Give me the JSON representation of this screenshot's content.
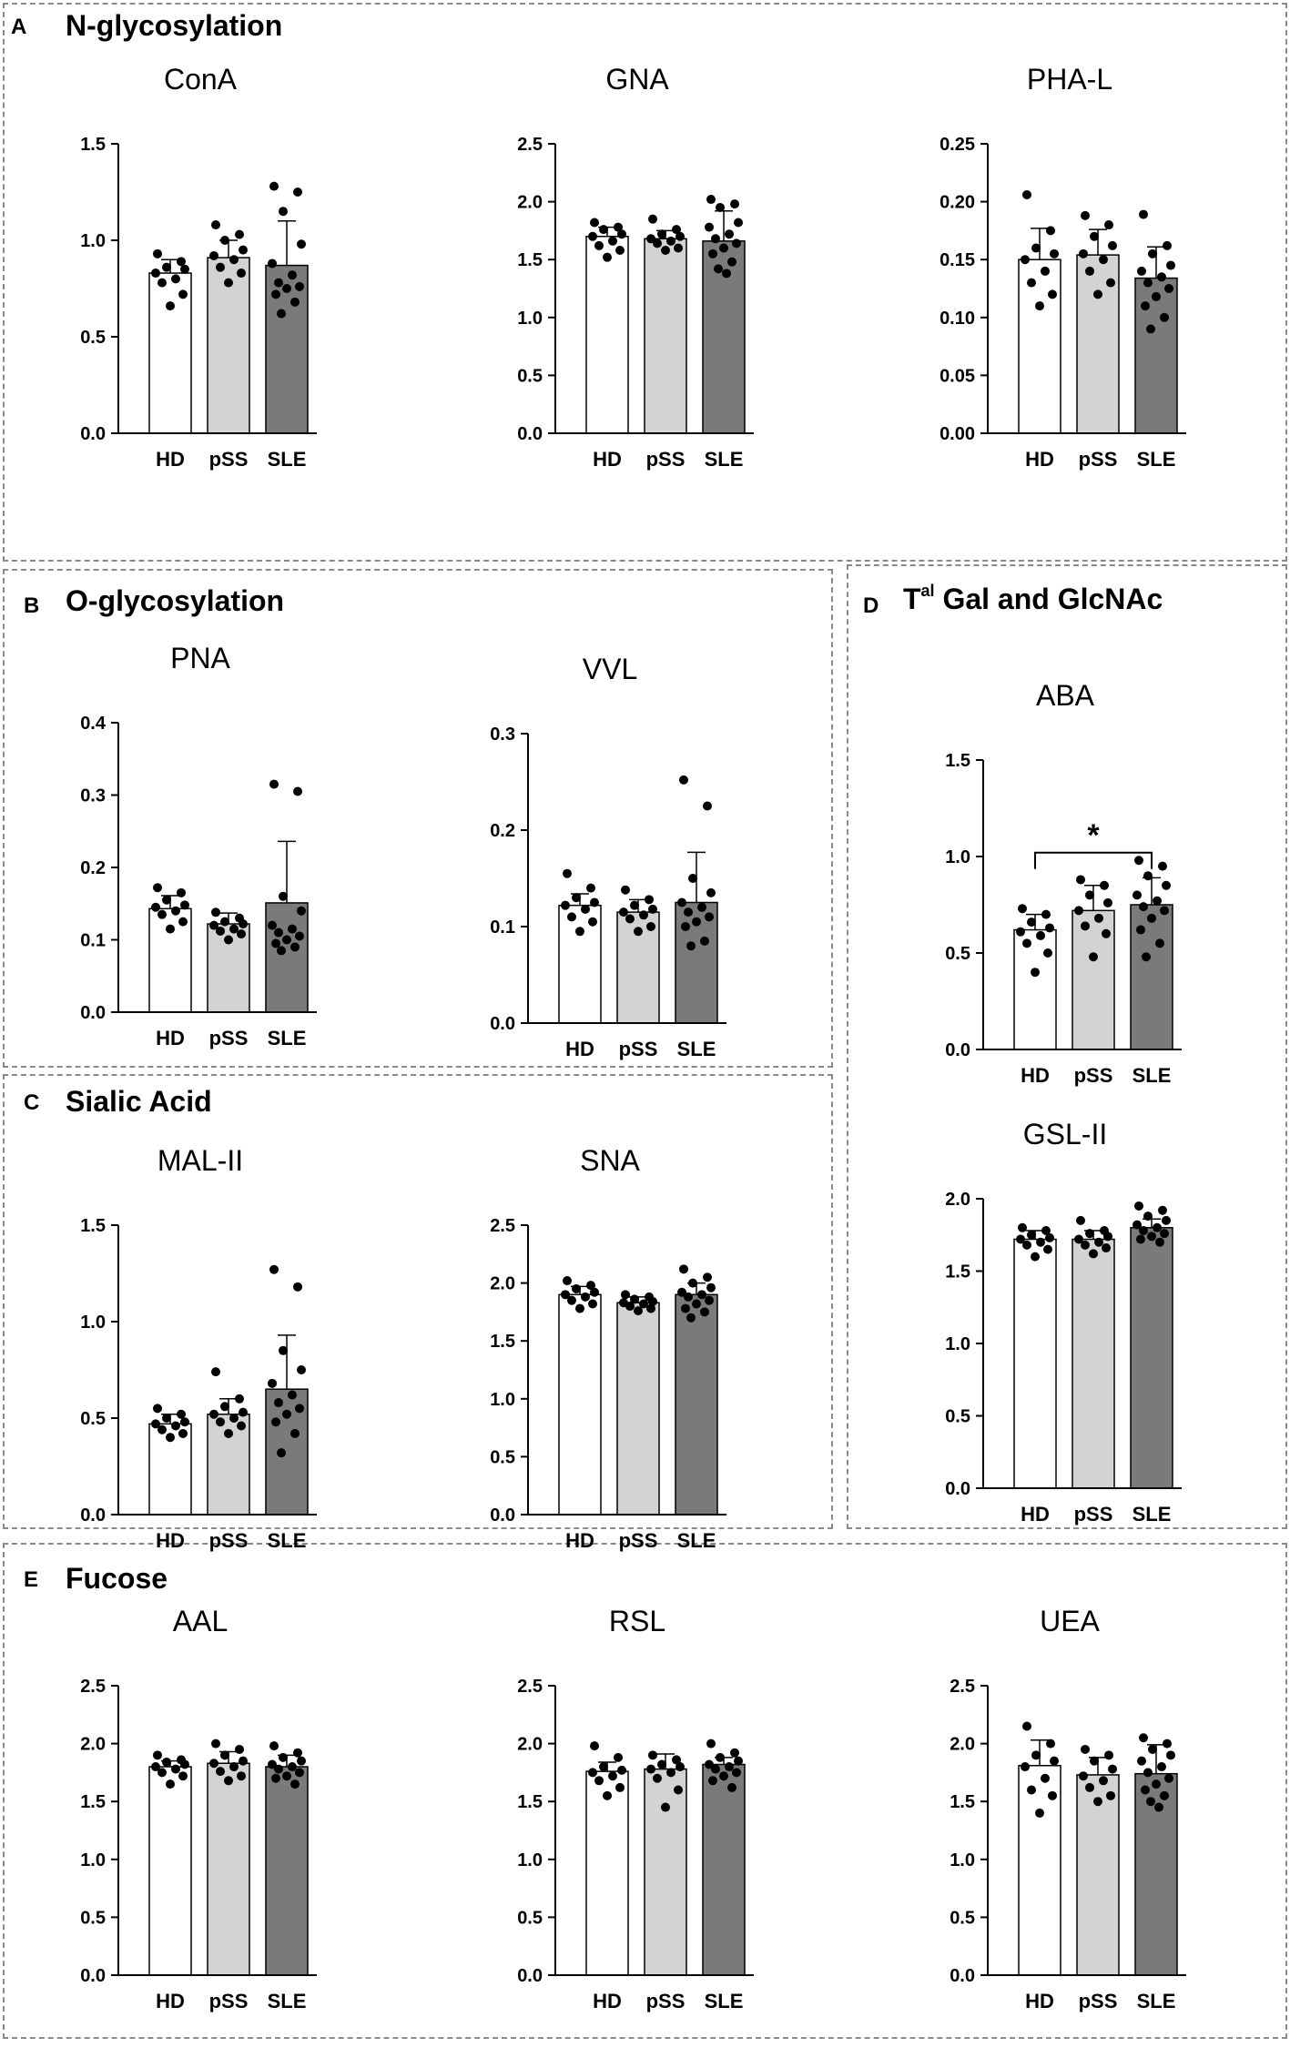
{
  "chart_data": [
    {
      "id": "cona",
      "panel": "A",
      "type": "bar",
      "title": "ConA",
      "categories": [
        "HD",
        "pSS",
        "SLE"
      ],
      "yticks": [
        "0.0",
        "0.5",
        "1.0",
        "1.5"
      ],
      "ylim": [
        0,
        1.5
      ],
      "colors": [
        "#ffffff",
        "#d3d3d3",
        "#7a7a7a"
      ],
      "values": [
        0.83,
        0.91,
        0.87
      ],
      "errors": [
        0.07,
        0.09,
        0.23
      ],
      "points": [
        [
          0.93,
          0.89,
          0.86,
          0.85,
          0.83,
          0.8,
          0.78,
          0.72,
          0.66
        ],
        [
          1.08,
          1.03,
          1.0,
          0.95,
          0.92,
          0.9,
          0.86,
          0.83,
          0.78
        ],
        [
          1.28,
          1.25,
          1.15,
          0.98,
          0.88,
          0.82,
          0.78,
          0.76,
          0.75,
          0.72,
          0.68,
          0.62
        ]
      ]
    },
    {
      "id": "gna",
      "panel": "A",
      "type": "bar",
      "title": "GNA",
      "categories": [
        "HD",
        "pSS",
        "SLE"
      ],
      "yticks": [
        "0.0",
        "0.5",
        "1.0",
        "1.5",
        "2.0",
        "2.5"
      ],
      "ylim": [
        0,
        2.5
      ],
      "colors": [
        "#ffffff",
        "#d3d3d3",
        "#7a7a7a"
      ],
      "values": [
        1.7,
        1.68,
        1.66
      ],
      "errors": [
        0.08,
        0.07,
        0.26
      ],
      "points": [
        [
          1.82,
          1.78,
          1.76,
          1.72,
          1.7,
          1.66,
          1.62,
          1.58,
          1.52
        ],
        [
          1.85,
          1.76,
          1.72,
          1.7,
          1.68,
          1.66,
          1.64,
          1.6,
          1.58
        ],
        [
          2.02,
          1.98,
          1.95,
          1.82,
          1.78,
          1.72,
          1.68,
          1.64,
          1.6,
          1.55,
          1.48,
          1.42,
          1.38
        ]
      ]
    },
    {
      "id": "phal",
      "panel": "A",
      "type": "bar",
      "title": "PHA-L",
      "categories": [
        "HD",
        "pSS",
        "SLE"
      ],
      "yticks": [
        "0.00",
        "0.05",
        "0.10",
        "0.15",
        "0.20",
        "0.25"
      ],
      "ylim": [
        0,
        0.25
      ],
      "colors": [
        "#ffffff",
        "#d3d3d3",
        "#7a7a7a"
      ],
      "values": [
        0.15,
        0.154,
        0.134
      ],
      "errors": [
        0.027,
        0.022,
        0.027
      ],
      "points": [
        [
          0.206,
          0.175,
          0.16,
          0.155,
          0.15,
          0.14,
          0.13,
          0.12,
          0.11
        ],
        [
          0.188,
          0.18,
          0.17,
          0.162,
          0.155,
          0.15,
          0.14,
          0.13,
          0.12
        ],
        [
          0.189,
          0.162,
          0.155,
          0.145,
          0.14,
          0.135,
          0.13,
          0.125,
          0.118,
          0.11,
          0.1,
          0.09
        ]
      ]
    },
    {
      "id": "pna",
      "panel": "B",
      "type": "bar",
      "title": "PNA",
      "categories": [
        "HD",
        "pSS",
        "SLE"
      ],
      "yticks": [
        "0.0",
        "0.1",
        "0.2",
        "0.3",
        "0.4"
      ],
      "ylim": [
        0,
        0.4
      ],
      "colors": [
        "#ffffff",
        "#d3d3d3",
        "#7a7a7a"
      ],
      "values": [
        0.143,
        0.122,
        0.151
      ],
      "errors": [
        0.018,
        0.015,
        0.085
      ],
      "points": [
        [
          0.172,
          0.165,
          0.155,
          0.148,
          0.145,
          0.14,
          0.135,
          0.125,
          0.115
        ],
        [
          0.138,
          0.13,
          0.125,
          0.122,
          0.12,
          0.115,
          0.112,
          0.108,
          0.1
        ],
        [
          0.315,
          0.305,
          0.16,
          0.14,
          0.12,
          0.115,
          0.11,
          0.105,
          0.1,
          0.095,
          0.09,
          0.085
        ]
      ]
    },
    {
      "id": "vvl",
      "panel": "B",
      "type": "bar",
      "title": "VVL",
      "categories": [
        "HD",
        "pSS",
        "SLE"
      ],
      "yticks": [
        "0.0",
        "0.1",
        "0.2",
        "0.3"
      ],
      "ylim": [
        0,
        0.3
      ],
      "colors": [
        "#ffffff",
        "#d3d3d3",
        "#7a7a7a"
      ],
      "values": [
        0.122,
        0.115,
        0.125
      ],
      "errors": [
        0.012,
        0.013,
        0.052
      ],
      "points": [
        [
          0.155,
          0.14,
          0.13,
          0.125,
          0.122,
          0.118,
          0.11,
          0.105,
          0.095
        ],
        [
          0.138,
          0.128,
          0.122,
          0.118,
          0.115,
          0.112,
          0.108,
          0.1,
          0.095
        ],
        [
          0.252,
          0.225,
          0.15,
          0.135,
          0.125,
          0.12,
          0.115,
          0.11,
          0.105,
          0.1,
          0.085,
          0.08
        ]
      ]
    },
    {
      "id": "malii",
      "panel": "C",
      "type": "bar",
      "title": "MAL-II",
      "categories": [
        "HD",
        "pSS",
        "SLE"
      ],
      "yticks": [
        "0.0",
        "0.5",
        "1.0",
        "1.5"
      ],
      "ylim": [
        0,
        1.5
      ],
      "colors": [
        "#ffffff",
        "#d3d3d3",
        "#7a7a7a"
      ],
      "values": [
        0.47,
        0.52,
        0.65
      ],
      "errors": [
        0.05,
        0.08,
        0.28
      ],
      "points": [
        [
          0.55,
          0.52,
          0.5,
          0.48,
          0.47,
          0.46,
          0.44,
          0.42,
          0.4
        ],
        [
          0.74,
          0.6,
          0.56,
          0.53,
          0.52,
          0.5,
          0.48,
          0.46,
          0.42
        ],
        [
          1.27,
          1.18,
          0.85,
          0.75,
          0.68,
          0.62,
          0.58,
          0.55,
          0.52,
          0.48,
          0.42,
          0.32
        ]
      ]
    },
    {
      "id": "sna",
      "panel": "C",
      "type": "bar",
      "title": "SNA",
      "categories": [
        "HD",
        "pSS",
        "SLE"
      ],
      "yticks": [
        "0.0",
        "0.5",
        "1.0",
        "1.5",
        "2.0",
        "2.5"
      ],
      "ylim": [
        0,
        2.5
      ],
      "colors": [
        "#ffffff",
        "#d3d3d3",
        "#7a7a7a"
      ],
      "values": [
        1.9,
        1.83,
        1.9
      ],
      "errors": [
        0.07,
        0.05,
        0.1
      ],
      "points": [
        [
          2.02,
          1.98,
          1.95,
          1.92,
          1.9,
          1.88,
          1.85,
          1.82,
          1.78
        ],
        [
          1.9,
          1.88,
          1.86,
          1.84,
          1.83,
          1.82,
          1.8,
          1.78,
          1.76
        ],
        [
          2.12,
          2.05,
          2.0,
          1.96,
          1.92,
          1.9,
          1.88,
          1.85,
          1.82,
          1.78,
          1.75,
          1.7
        ]
      ]
    },
    {
      "id": "aba",
      "panel": "D",
      "type": "bar",
      "title": "ABA",
      "categories": [
        "HD",
        "pSS",
        "SLE"
      ],
      "yticks": [
        "0.0",
        "0.5",
        "1.0",
        "1.5"
      ],
      "ylim": [
        0,
        1.5
      ],
      "colors": [
        "#ffffff",
        "#d3d3d3",
        "#7a7a7a"
      ],
      "values": [
        0.62,
        0.72,
        0.75
      ],
      "errors": [
        0.08,
        0.13,
        0.14
      ],
      "points": [
        [
          0.73,
          0.7,
          0.66,
          0.63,
          0.61,
          0.59,
          0.55,
          0.5,
          0.4
        ],
        [
          0.88,
          0.85,
          0.8,
          0.76,
          0.72,
          0.68,
          0.64,
          0.6,
          0.48
        ],
        [
          0.98,
          0.95,
          0.9,
          0.85,
          0.8,
          0.77,
          0.74,
          0.72,
          0.68,
          0.62,
          0.55,
          0.48
        ]
      ],
      "significance": {
        "from": 0,
        "to": 2,
        "label": "*",
        "y": 1.02
      }
    },
    {
      "id": "gslii",
      "panel": "D",
      "type": "bar",
      "title": "GSL-II",
      "categories": [
        "HD",
        "pSS",
        "SLE"
      ],
      "yticks": [
        "0.0",
        "0.5",
        "1.0",
        "1.5",
        "2.0"
      ],
      "ylim": [
        0,
        2.0
      ],
      "colors": [
        "#ffffff",
        "#d3d3d3",
        "#7a7a7a"
      ],
      "values": [
        1.72,
        1.72,
        1.8
      ],
      "errors": [
        0.06,
        0.06,
        0.06
      ],
      "points": [
        [
          1.8,
          1.78,
          1.75,
          1.73,
          1.72,
          1.7,
          1.68,
          1.65,
          1.6
        ],
        [
          1.85,
          1.78,
          1.76,
          1.74,
          1.72,
          1.7,
          1.68,
          1.66,
          1.62
        ],
        [
          1.95,
          1.92,
          1.88,
          1.85,
          1.82,
          1.8,
          1.78,
          1.76,
          1.74,
          1.72,
          1.7
        ]
      ]
    },
    {
      "id": "aal",
      "panel": "E",
      "type": "bar",
      "title": "AAL",
      "categories": [
        "HD",
        "pSS",
        "SLE"
      ],
      "yticks": [
        "0.0",
        "0.5",
        "1.0",
        "1.5",
        "2.0",
        "2.5"
      ],
      "ylim": [
        0,
        2.5
      ],
      "colors": [
        "#ffffff",
        "#d3d3d3",
        "#7a7a7a"
      ],
      "values": [
        1.8,
        1.83,
        1.8
      ],
      "errors": [
        0.05,
        0.1,
        0.1
      ],
      "points": [
        [
          1.9,
          1.86,
          1.84,
          1.82,
          1.8,
          1.78,
          1.75,
          1.72,
          1.65
        ],
        [
          2.0,
          1.95,
          1.9,
          1.85,
          1.83,
          1.8,
          1.76,
          1.72,
          1.68
        ],
        [
          1.98,
          1.92,
          1.88,
          1.85,
          1.82,
          1.8,
          1.78,
          1.75,
          1.72,
          1.7,
          1.65
        ]
      ]
    },
    {
      "id": "rsl",
      "panel": "E",
      "type": "bar",
      "title": "RSL",
      "categories": [
        "HD",
        "pSS",
        "SLE"
      ],
      "yticks": [
        "0.0",
        "0.5",
        "1.0",
        "1.5",
        "2.0",
        "2.5"
      ],
      "ylim": [
        0,
        2.5
      ],
      "colors": [
        "#ffffff",
        "#d3d3d3",
        "#7a7a7a"
      ],
      "values": [
        1.76,
        1.78,
        1.82
      ],
      "errors": [
        0.08,
        0.13,
        0.06
      ],
      "points": [
        [
          1.98,
          1.88,
          1.8,
          1.77,
          1.75,
          1.72,
          1.68,
          1.62,
          1.55
        ],
        [
          1.9,
          1.86,
          1.82,
          1.8,
          1.78,
          1.75,
          1.7,
          1.6,
          1.45
        ],
        [
          2.0,
          1.92,
          1.88,
          1.85,
          1.82,
          1.8,
          1.78,
          1.75,
          1.72,
          1.68,
          1.62
        ]
      ]
    },
    {
      "id": "uea",
      "panel": "E",
      "type": "bar",
      "title": "UEA",
      "categories": [
        "HD",
        "pSS",
        "SLE"
      ],
      "yticks": [
        "0.0",
        "0.5",
        "1.0",
        "1.5",
        "2.0",
        "2.5"
      ],
      "ylim": [
        0,
        2.5
      ],
      "colors": [
        "#ffffff",
        "#d3d3d3",
        "#7a7a7a"
      ],
      "values": [
        1.81,
        1.73,
        1.74
      ],
      "errors": [
        0.22,
        0.15,
        0.25
      ],
      "points": [
        [
          2.15,
          2.0,
          1.9,
          1.85,
          1.8,
          1.7,
          1.6,
          1.55,
          1.4
        ],
        [
          1.95,
          1.9,
          1.85,
          1.78,
          1.72,
          1.68,
          1.62,
          1.55,
          1.5
        ],
        [
          2.05,
          2.0,
          1.95,
          1.9,
          1.85,
          1.8,
          1.75,
          1.7,
          1.65,
          1.6,
          1.55,
          1.5,
          1.45
        ]
      ]
    }
  ],
  "panels": {
    "a": {
      "letter": "A",
      "title": "N-glycosylation"
    },
    "b": {
      "letter": "B",
      "title": "O-glycosylation"
    },
    "c": {
      "letter": "C",
      "title": "Sialic Acid"
    },
    "d": {
      "letter": "D",
      "title_prefix": "T",
      "title_sup": "al",
      "title_rest": " Gal and GlcNAc"
    },
    "e": {
      "letter": "E",
      "title": "Fucose"
    }
  }
}
